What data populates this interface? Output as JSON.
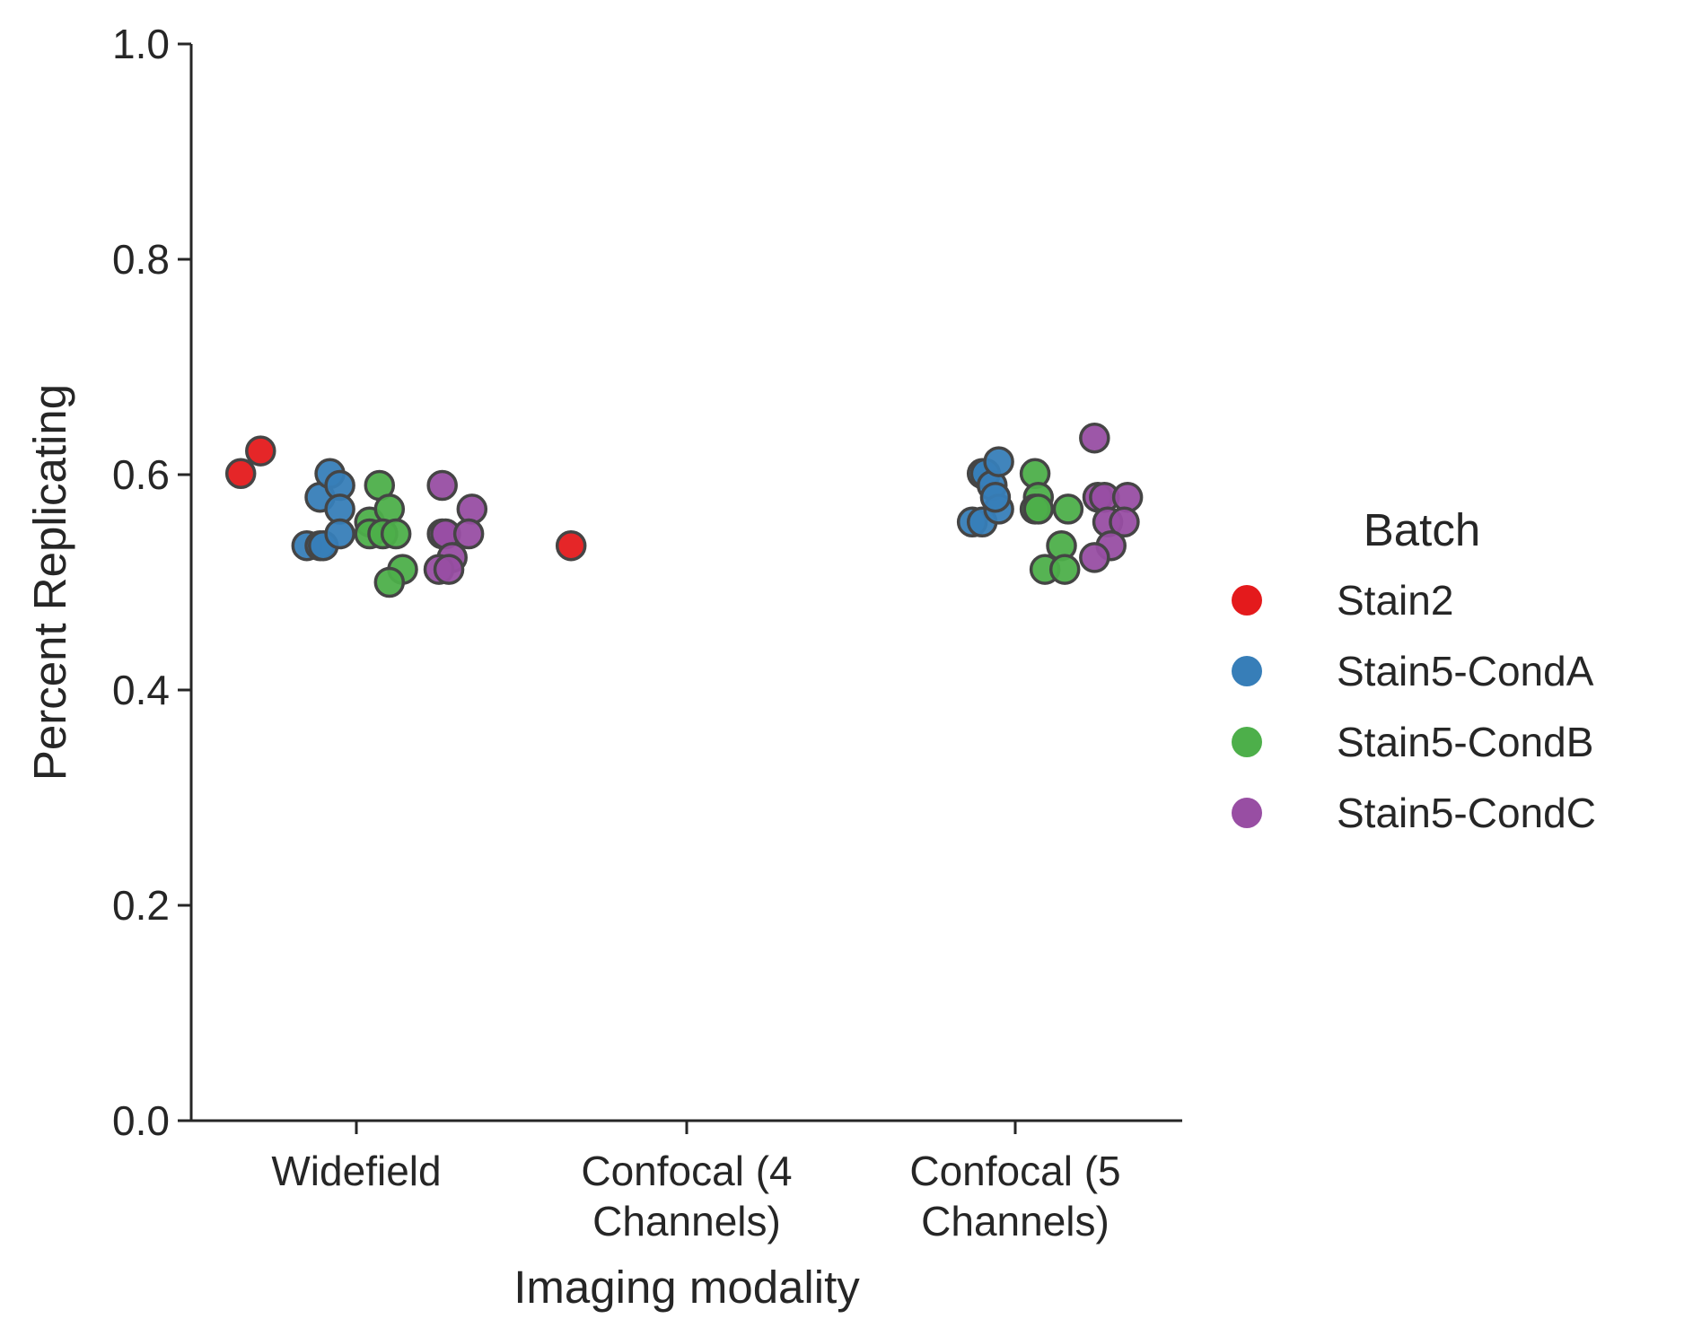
{
  "chart_data": {
    "type": "scatter",
    "title": "",
    "xlabel": "Imaging modality",
    "ylabel": "Percent Replicating",
    "ylim": [
      0,
      1.0
    ],
    "yticks": [
      "0.0",
      "0.2",
      "0.4",
      "0.6",
      "0.8",
      "1.0"
    ],
    "categories": [
      [
        "Widefield"
      ],
      [
        "Confocal (4",
        "Channels)"
      ],
      [
        "Confocal (5",
        "Channels)"
      ]
    ],
    "legend": {
      "title": "Batch",
      "placement": "right"
    },
    "series": [
      {
        "name": "Stain2",
        "color": "#e41a1c",
        "points": [
          {
            "category": 0,
            "jitter": -0.35,
            "y": 0.601
          },
          {
            "category": 0,
            "jitter": -0.29,
            "y": 0.622
          },
          {
            "category": 1,
            "jitter": -0.35,
            "y": 0.534
          }
        ]
      },
      {
        "name": "Stain5-CondA",
        "color": "#377eb8",
        "points": [
          {
            "category": 0,
            "jitter": -0.15,
            "y": 0.534
          },
          {
            "category": 0,
            "jitter": -0.11,
            "y": 0.534
          },
          {
            "category": 0,
            "jitter": -0.1,
            "y": 0.534
          },
          {
            "category": 0,
            "jitter": -0.11,
            "y": 0.579
          },
          {
            "category": 0,
            "jitter": -0.08,
            "y": 0.601
          },
          {
            "category": 0,
            "jitter": -0.05,
            "y": 0.59
          },
          {
            "category": 0,
            "jitter": -0.05,
            "y": 0.568
          },
          {
            "category": 0,
            "jitter": -0.05,
            "y": 0.545
          },
          {
            "category": 2,
            "jitter": -0.13,
            "y": 0.556
          },
          {
            "category": 2,
            "jitter": -0.1,
            "y": 0.556
          },
          {
            "category": 2,
            "jitter": -0.1,
            "y": 0.601
          },
          {
            "category": 2,
            "jitter": -0.09,
            "y": 0.601
          },
          {
            "category": 2,
            "jitter": -0.07,
            "y": 0.59
          },
          {
            "category": 2,
            "jitter": -0.05,
            "y": 0.612
          },
          {
            "category": 2,
            "jitter": -0.05,
            "y": 0.568
          },
          {
            "category": 2,
            "jitter": -0.06,
            "y": 0.579
          }
        ]
      },
      {
        "name": "Stain5-CondB",
        "color": "#4daf4a",
        "points": [
          {
            "category": 0,
            "jitter": 0.04,
            "y": 0.556
          },
          {
            "category": 0,
            "jitter": 0.07,
            "y": 0.59
          },
          {
            "category": 0,
            "jitter": 0.1,
            "y": 0.568
          },
          {
            "category": 0,
            "jitter": 0.04,
            "y": 0.545
          },
          {
            "category": 0,
            "jitter": 0.08,
            "y": 0.545
          },
          {
            "category": 0,
            "jitter": 0.12,
            "y": 0.545
          },
          {
            "category": 0,
            "jitter": 0.14,
            "y": 0.512
          },
          {
            "category": 0,
            "jitter": 0.1,
            "y": 0.5
          },
          {
            "category": 2,
            "jitter": 0.06,
            "y": 0.601
          },
          {
            "category": 2,
            "jitter": 0.07,
            "y": 0.579
          },
          {
            "category": 2,
            "jitter": 0.06,
            "y": 0.568
          },
          {
            "category": 2,
            "jitter": 0.07,
            "y": 0.568
          },
          {
            "category": 2,
            "jitter": 0.16,
            "y": 0.568
          },
          {
            "category": 2,
            "jitter": 0.14,
            "y": 0.534
          },
          {
            "category": 2,
            "jitter": 0.09,
            "y": 0.512
          },
          {
            "category": 2,
            "jitter": 0.15,
            "y": 0.512
          }
        ]
      },
      {
        "name": "Stain5-CondC",
        "color": "#984ea3",
        "points": [
          {
            "category": 0,
            "jitter": 0.26,
            "y": 0.59
          },
          {
            "category": 0,
            "jitter": 0.35,
            "y": 0.568
          },
          {
            "category": 0,
            "jitter": 0.26,
            "y": 0.545
          },
          {
            "category": 0,
            "jitter": 0.27,
            "y": 0.545
          },
          {
            "category": 0,
            "jitter": 0.34,
            "y": 0.545
          },
          {
            "category": 0,
            "jitter": 0.29,
            "y": 0.523
          },
          {
            "category": 0,
            "jitter": 0.25,
            "y": 0.512
          },
          {
            "category": 0,
            "jitter": 0.28,
            "y": 0.512
          },
          {
            "category": 2,
            "jitter": 0.24,
            "y": 0.634
          },
          {
            "category": 2,
            "jitter": 0.25,
            "y": 0.579
          },
          {
            "category": 2,
            "jitter": 0.27,
            "y": 0.579
          },
          {
            "category": 2,
            "jitter": 0.34,
            "y": 0.579
          },
          {
            "category": 2,
            "jitter": 0.28,
            "y": 0.556
          },
          {
            "category": 2,
            "jitter": 0.33,
            "y": 0.556
          },
          {
            "category": 2,
            "jitter": 0.29,
            "y": 0.534
          },
          {
            "category": 2,
            "jitter": 0.24,
            "y": 0.523
          }
        ]
      }
    ]
  }
}
